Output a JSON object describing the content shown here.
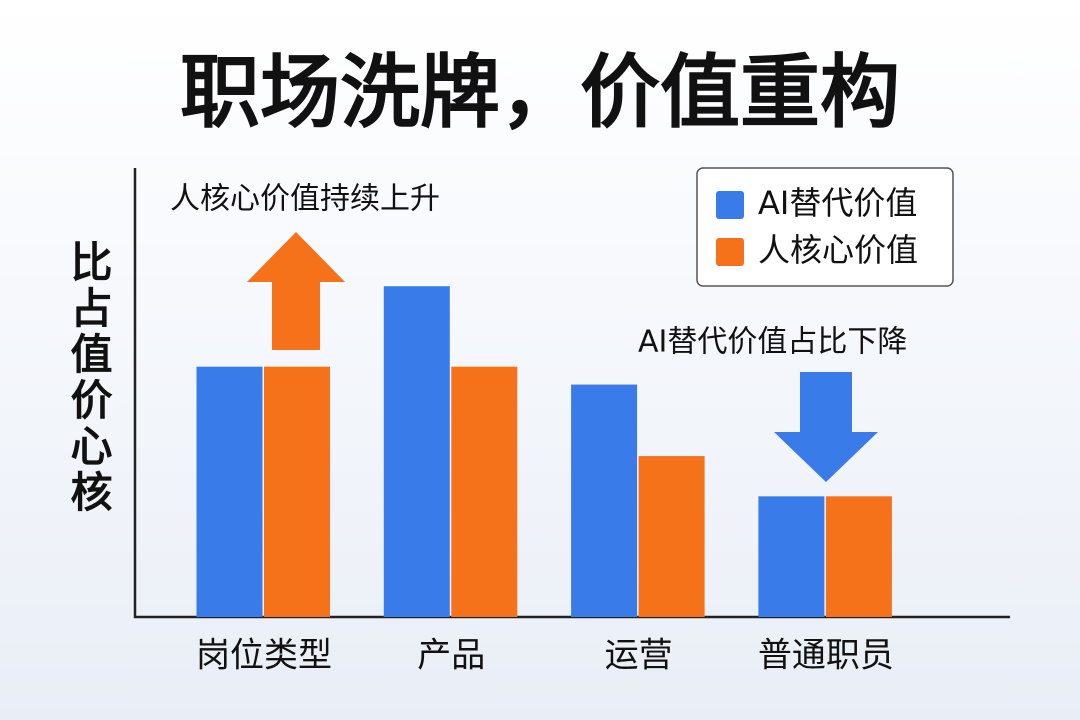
{
  "chart_data": {
    "type": "bar",
    "title": "职场洗牌，价值重构",
    "y_label": "比占值价心核",
    "categories": [
      "岗位类型",
      "产品",
      "运营",
      "普通职员"
    ],
    "series": [
      {
        "name": "AI替代价值",
        "color": "#3a7bea",
        "values": [
          56,
          74,
          52,
          27
        ]
      },
      {
        "name": "人核心价值",
        "color": "#f5711a",
        "values": [
          56,
          56,
          36,
          27
        ]
      }
    ],
    "ylim": [
      0,
      100
    ],
    "annotations": [
      "人核心价值持续上升",
      "AI替代价值占比下降"
    ],
    "legend": "top-right"
  }
}
